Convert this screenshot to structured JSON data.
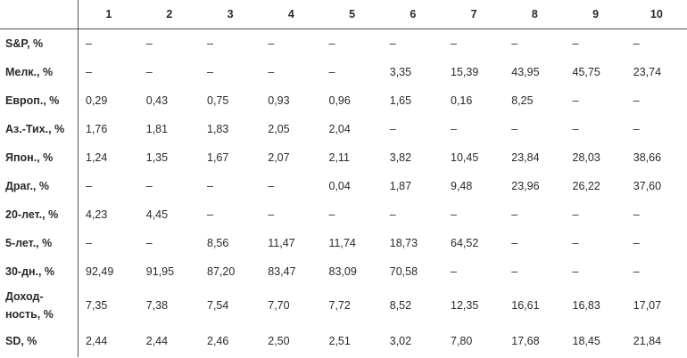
{
  "table": {
    "columns": [
      "1",
      "2",
      "3",
      "4",
      "5",
      "6",
      "7",
      "8",
      "9",
      "10"
    ],
    "rows": [
      {
        "label": "S&P, %",
        "cells": [
          "–",
          "–",
          "–",
          "–",
          "–",
          "–",
          "–",
          "–",
          "–",
          "–"
        ]
      },
      {
        "label": "Мелк., %",
        "cells": [
          "–",
          "–",
          "–",
          "–",
          "–",
          "3,35",
          "15,39",
          "43,95",
          "45,75",
          "23,74"
        ]
      },
      {
        "label": "Европ., %",
        "cells": [
          "0,29",
          "0,43",
          "0,75",
          "0,93",
          "0,96",
          "1,65",
          "0,16",
          "8,25",
          "–",
          "–"
        ]
      },
      {
        "label": "Аз.-Тих., %",
        "cells": [
          "1,76",
          "1,81",
          "1,83",
          "2,05",
          "2,04",
          "–",
          "–",
          "–",
          "–",
          "–"
        ]
      },
      {
        "label": "Япон., %",
        "cells": [
          "1,24",
          "1,35",
          "1,67",
          "2,07",
          "2,11",
          "3,82",
          "10,45",
          "23,84",
          "28,03",
          "38,66"
        ]
      },
      {
        "label": "Драг., %",
        "cells": [
          "–",
          "–",
          "–",
          "–",
          "0,04",
          "1,87",
          "9,48",
          "23,96",
          "26,22",
          "37,60"
        ]
      },
      {
        "label": "20-лет., %",
        "cells": [
          "4,23",
          "4,45",
          "–",
          "–",
          "–",
          "–",
          "–",
          "–",
          "–",
          "–"
        ]
      },
      {
        "label": "5-лет., %",
        "cells": [
          "–",
          "–",
          "8,56",
          "11,47",
          "11,74",
          "18,73",
          "64,52",
          "–",
          "–",
          "–"
        ]
      },
      {
        "label": "30-дн., %",
        "cells": [
          "92,49",
          "91,95",
          "87,20",
          "83,47",
          "83,09",
          "70,58",
          "–",
          "–",
          "–",
          "–"
        ]
      },
      {
        "label": "Доход-\nность, %",
        "cells": [
          "7,35",
          "7,38",
          "7,54",
          "7,70",
          "7,72",
          "8,52",
          "12,35",
          "16,61",
          "16,83",
          "17,07"
        ]
      },
      {
        "label": "SD, %",
        "cells": [
          "2,44",
          "2,44",
          "2,46",
          "2,50",
          "2,51",
          "3,02",
          "7,80",
          "17,68",
          "18,45",
          "21,84"
        ]
      }
    ]
  }
}
